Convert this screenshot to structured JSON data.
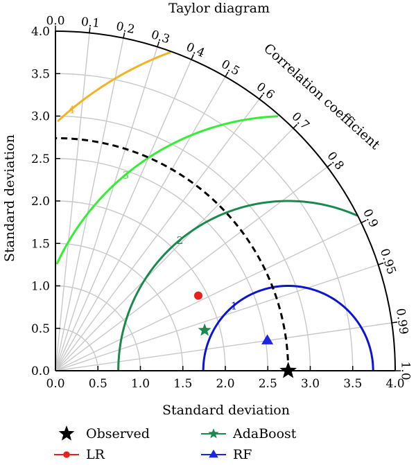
{
  "chart_data": {
    "type": "scatter",
    "subtype": "taylor-diagram",
    "title": "Taylor diagram",
    "xlabel": "Standard deviation",
    "ylabel": "Standard deviation",
    "angular_label": "Correlation coefficient",
    "std_range": [
      0,
      4.0
    ],
    "std_ticks": [
      "0.0",
      "0.5",
      "1.0",
      "1.5",
      "2.0",
      "2.5",
      "3.0",
      "3.5",
      "4.0"
    ],
    "corr_ticks": [
      "0.0",
      "0.1",
      "0.2",
      "0.3",
      "0.4",
      "0.5",
      "0.6",
      "0.7",
      "0.8",
      "0.9",
      "0.95",
      "0.99",
      "1.0"
    ],
    "reference_std": 2.74,
    "rms_contours": [
      {
        "label": "1",
        "value": 1.0,
        "color": "#0a14d2"
      },
      {
        "label": "2",
        "value": 2.0,
        "color": "#1a8a4c"
      },
      {
        "label": "3",
        "value": 3.0,
        "color": "#33ee33"
      },
      {
        "label": "4",
        "value": 4.0,
        "color": "#f2b226"
      }
    ],
    "series": [
      {
        "name": "Observed",
        "std": 2.74,
        "corr": 1.0,
        "marker": "star",
        "color": "#000000"
      },
      {
        "name": "LR",
        "std": 1.9,
        "corr": 0.885,
        "marker": "circle",
        "color": "#e8211d"
      },
      {
        "name": "AdaBoost",
        "std": 1.82,
        "corr": 0.965,
        "marker": "star",
        "color": "#1a8a4c"
      },
      {
        "name": "RF",
        "std": 2.52,
        "corr": 0.99,
        "marker": "triangle",
        "color": "#1a26e0"
      }
    ],
    "grid": true,
    "legend_position": "bottom"
  }
}
